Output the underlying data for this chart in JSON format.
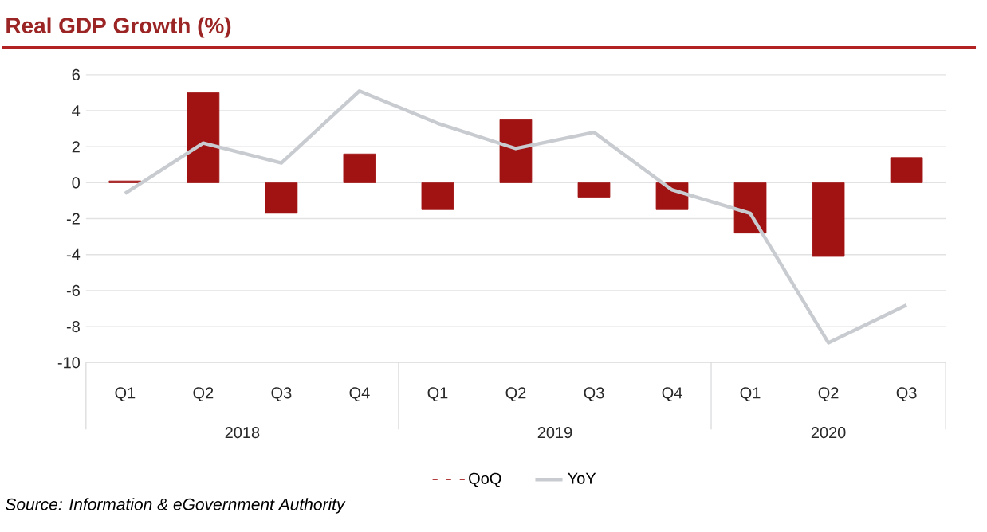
{
  "chart_data": {
    "type": "bar",
    "title": "Real GDP Growth (%)",
    "categories": [
      "Q1",
      "Q2",
      "Q3",
      "Q4",
      "Q1",
      "Q2",
      "Q3",
      "Q4",
      "Q1",
      "Q2",
      "Q3"
    ],
    "series": [
      {
        "name": "QoQ",
        "color": "#a11212",
        "values": [
          0.1,
          5.0,
          -1.7,
          1.6,
          -1.5,
          3.5,
          -0.8,
          -1.5,
          -2.8,
          -4.1,
          1.4
        ]
      },
      {
        "name": "YoY",
        "type": "line",
        "color": "#c8cbd0",
        "values": [
          -0.6,
          2.2,
          1.1,
          5.1,
          3.3,
          1.9,
          2.8,
          -0.4,
          -1.7,
          -8.9,
          -6.8
        ]
      }
    ],
    "ylim": [
      -10,
      6
    ],
    "yticks": [
      -10,
      -8,
      -6,
      -4,
      -2,
      0,
      2,
      4,
      6
    ],
    "grid": "y",
    "legend": "bottom",
    "annotations": [
      "2018",
      "2019",
      "2020",
      "Source: Information & eGovernment Authority"
    ]
  }
}
